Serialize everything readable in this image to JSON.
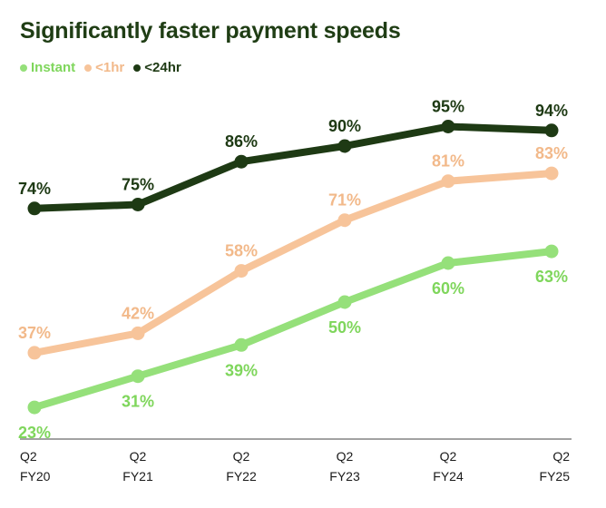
{
  "chart_data": {
    "type": "line",
    "title": "Significantly faster payment speeds",
    "categories": [
      [
        "Q2",
        "FY20"
      ],
      [
        "Q2",
        "FY21"
      ],
      [
        "Q2",
        "FY22"
      ],
      [
        "Q2",
        "FY23"
      ],
      [
        "Q2",
        "FY24"
      ],
      [
        "Q2",
        "FY25"
      ]
    ],
    "series": [
      {
        "name": "Instant",
        "color": "#95e07a",
        "label_color": "#7fd65c",
        "values": [
          23,
          31,
          39,
          50,
          60,
          63
        ],
        "labels": [
          "23%",
          "31%",
          "39%",
          "50%",
          "60%",
          "63%"
        ],
        "label_position": "below"
      },
      {
        "name": "<1hr",
        "color": "#f7c49a",
        "label_color": "#f2b98a",
        "values": [
          37,
          42,
          58,
          71,
          81,
          83
        ],
        "labels": [
          "37%",
          "42%",
          "58%",
          "71%",
          "81%",
          "83%"
        ],
        "label_position": "above"
      },
      {
        "name": "<24hr",
        "color": "#1e3a14",
        "label_color": "#1e3a14",
        "values": [
          74,
          75,
          86,
          90,
          95,
          94
        ],
        "labels": [
          "74%",
          "75%",
          "86%",
          "90%",
          "95%",
          "94%"
        ],
        "label_position": "above"
      }
    ],
    "xlabel": "",
    "ylabel": "",
    "ylim": [
      0,
      100
    ],
    "grid": false,
    "legend": "top-left"
  }
}
